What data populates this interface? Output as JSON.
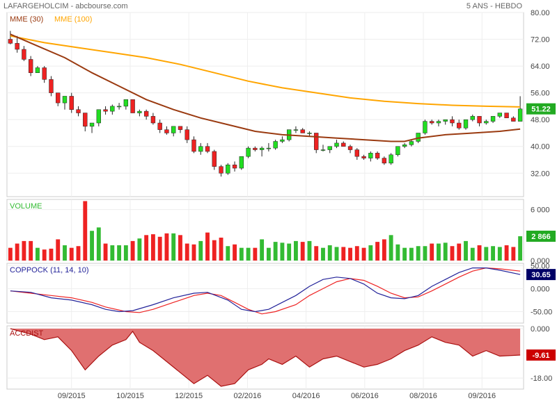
{
  "header": {
    "title": "LAFARGEHOLCIM - abcbourse.com",
    "period": "5 ANS - HEBDO"
  },
  "colors": {
    "up": "#22dd22",
    "down": "#ee2222",
    "mme30": "#9a3a10",
    "mme100": "#ffa500",
    "volume": "#33bb33",
    "coppock_blue": "#222299",
    "coppock_red": "#ee2222",
    "accdist_fill": "#e07070",
    "accdist_line": "#aa1111",
    "badge_green": "#22aa22",
    "badge_navy": "#000066",
    "badge_red": "#cc0000"
  },
  "chart_data": [
    {
      "type": "candlestick",
      "legend": [
        "MME (30)",
        "MME (100)"
      ],
      "yticks": [
        "80.00",
        "72.00",
        "64.00",
        "56.00",
        "48.00",
        "40.00",
        "32.00"
      ],
      "ylim": [
        25,
        80
      ],
      "last_value": "51.22",
      "xlabels": [
        "09/2015",
        "10/2015",
        "12/2015",
        "02/2016",
        "04/2016",
        "06/2016",
        "08/2016",
        "09/2016"
      ],
      "candles": [
        [
          72,
          74.5,
          70.5,
          70.8
        ],
        [
          70.8,
          73,
          68,
          69
        ],
        [
          69,
          70,
          65.5,
          66
        ],
        [
          66,
          67,
          61,
          62
        ],
        [
          62,
          64,
          62,
          63.5
        ],
        [
          63.5,
          64,
          59,
          60
        ],
        [
          60,
          61,
          55,
          56
        ],
        [
          56,
          56,
          52,
          53
        ],
        [
          53,
          55,
          51,
          55
        ],
        [
          55,
          56,
          50,
          51
        ],
        [
          51,
          52,
          49,
          50
        ],
        [
          50,
          50,
          44.5,
          46
        ],
        [
          46,
          47,
          44,
          47
        ],
        [
          47,
          51,
          46,
          51
        ],
        [
          51,
          52,
          49.5,
          50.5
        ],
        [
          50.5,
          52.5,
          49.5,
          52
        ],
        [
          52,
          53,
          51,
          52
        ],
        [
          52,
          54,
          51,
          54
        ],
        [
          54,
          54,
          50,
          50
        ],
        [
          50,
          51,
          49,
          50.5
        ],
        [
          50.5,
          51,
          48,
          49
        ],
        [
          49,
          50,
          46.5,
          47
        ],
        [
          47,
          48,
          44,
          45
        ],
        [
          45,
          46,
          43.5,
          44
        ],
        [
          44,
          46,
          43,
          46
        ],
        [
          46,
          46,
          44,
          45
        ],
        [
          45,
          46,
          41,
          42
        ],
        [
          42,
          43,
          38,
          38.5
        ],
        [
          38.5,
          41,
          37.5,
          40
        ],
        [
          40,
          41,
          38,
          38.5
        ],
        [
          38.5,
          39,
          33,
          34
        ],
        [
          34,
          34.5,
          31,
          32
        ],
        [
          32,
          35,
          31.5,
          34.5
        ],
        [
          34.5,
          35.5,
          32.5,
          33.5
        ],
        [
          33.5,
          37,
          33,
          37
        ],
        [
          37,
          40,
          36.5,
          39.5
        ],
        [
          39.5,
          40,
          38.5,
          39
        ],
        [
          39,
          40,
          37,
          39.5
        ],
        [
          39.5,
          41,
          38.5,
          39.5
        ],
        [
          39.5,
          42,
          39,
          41.5
        ],
        [
          41.5,
          43,
          41,
          42
        ],
        [
          42,
          45,
          41.5,
          45
        ],
        [
          45,
          46,
          44,
          45
        ],
        [
          45,
          45.5,
          44,
          44
        ],
        [
          44,
          44.5,
          43,
          44
        ],
        [
          44,
          44,
          38,
          39
        ],
        [
          39,
          40.5,
          38.5,
          39
        ],
        [
          39,
          40,
          38,
          40
        ],
        [
          40,
          42,
          39.5,
          41
        ],
        [
          41,
          41.5,
          40,
          40
        ],
        [
          40,
          40.5,
          38,
          39
        ],
        [
          39,
          39.5,
          36,
          37
        ],
        [
          37,
          37.5,
          36,
          36.5
        ],
        [
          36.5,
          38.5,
          35.5,
          38
        ],
        [
          38,
          38.5,
          36,
          36.5
        ],
        [
          36.5,
          37,
          34.5,
          35
        ],
        [
          35,
          38,
          34.5,
          37.5
        ],
        [
          37.5,
          40,
          37,
          40
        ],
        [
          40,
          41,
          39.5,
          40.5
        ],
        [
          40.5,
          42,
          40,
          41.5
        ],
        [
          41.5,
          44,
          41,
          44
        ],
        [
          44,
          48,
          43.5,
          47.5
        ],
        [
          47.5,
          48,
          46.5,
          47
        ],
        [
          47,
          48,
          46,
          47.5
        ],
        [
          47.5,
          48,
          46.5,
          48
        ],
        [
          48,
          49,
          46,
          47
        ],
        [
          47,
          48,
          45,
          45.5
        ],
        [
          45.5,
          48,
          45,
          48
        ],
        [
          48,
          49.5,
          47.5,
          49
        ],
        [
          49,
          49,
          46,
          47
        ],
        [
          47,
          48,
          46.5,
          47.5
        ],
        [
          47.5,
          49,
          47,
          49
        ],
        [
          49,
          50,
          48.5,
          50
        ],
        [
          50,
          50,
          48.5,
          48.5
        ],
        [
          48.5,
          49,
          47.5,
          47.5
        ],
        [
          47.5,
          55,
          47.5,
          51.2
        ]
      ],
      "mme30": [
        [
          0,
          73.5
        ],
        [
          4,
          70
        ],
        [
          8,
          66.5
        ],
        [
          12,
          62
        ],
        [
          16,
          58
        ],
        [
          20,
          54
        ],
        [
          24,
          51
        ],
        [
          28,
          48.5
        ],
        [
          32,
          46.5
        ],
        [
          36,
          44.5
        ],
        [
          40,
          43.5
        ],
        [
          44,
          43
        ],
        [
          48,
          42.5
        ],
        [
          52,
          42
        ],
        [
          56,
          41.5
        ],
        [
          58,
          41.5
        ],
        [
          60,
          42.5
        ],
        [
          64,
          43.5
        ],
        [
          68,
          44
        ],
        [
          72,
          44.5
        ],
        [
          75,
          45.2
        ]
      ],
      "mme100": [
        [
          0,
          73
        ],
        [
          5,
          71
        ],
        [
          10,
          69.5
        ],
        [
          15,
          68
        ],
        [
          20,
          66.5
        ],
        [
          25,
          64.5
        ],
        [
          30,
          62
        ],
        [
          35,
          59.5
        ],
        [
          40,
          57.5
        ],
        [
          45,
          56
        ],
        [
          50,
          54.5
        ],
        [
          55,
          53.5
        ],
        [
          60,
          52.8
        ],
        [
          65,
          52.3
        ],
        [
          70,
          52
        ],
        [
          75,
          51.8
        ]
      ]
    },
    {
      "type": "bar",
      "title": "VOLUME",
      "yticks": [
        "6 000",
        "0.000"
      ],
      "ylim": [
        0,
        7200
      ],
      "last_value": "2 866",
      "values": [
        1500,
        2000,
        2300,
        2300,
        1500,
        1300,
        1400,
        2500,
        1800,
        1500,
        1700,
        7000,
        3500,
        3900,
        2000,
        1800,
        1800,
        1800,
        2300,
        2600,
        3000,
        3100,
        2800,
        3200,
        3200,
        3000,
        2000,
        1900,
        2300,
        3300,
        2400,
        2700,
        1700,
        1900,
        1500,
        1500,
        1500,
        2500,
        1500,
        2200,
        2100,
        2000,
        2300,
        2200,
        2300,
        1700,
        1500,
        1800,
        1600,
        1600,
        1500,
        1700,
        1500,
        1800,
        2200,
        2500,
        3000,
        1900,
        1500,
        1500,
        1700,
        1700,
        2000,
        2000,
        2100,
        1700,
        2000,
        2300,
        1500,
        1800,
        1600,
        1700,
        1600,
        1800,
        1600,
        2866
      ]
    },
    {
      "type": "line",
      "title": "COPPOCK (11, 14, 10)",
      "yticks": [
        "50.00",
        "0.000",
        "-50.00"
      ],
      "ylim": [
        -75,
        55
      ],
      "last_value": "30.65",
      "series": [
        {
          "name": "blue",
          "points": [
            [
              0,
              -5
            ],
            [
              3,
              -8
            ],
            [
              6,
              -20
            ],
            [
              9,
              -25
            ],
            [
              12,
              -35
            ],
            [
              14,
              -45
            ],
            [
              16,
              -50
            ],
            [
              18,
              -48
            ],
            [
              21,
              -35
            ],
            [
              24,
              -20
            ],
            [
              27,
              -10
            ],
            [
              29,
              -8
            ],
            [
              32,
              -25
            ],
            [
              34,
              -45
            ],
            [
              36,
              -50
            ],
            [
              38,
              -45
            ],
            [
              40,
              -30
            ],
            [
              42,
              -15
            ],
            [
              44,
              5
            ],
            [
              46,
              20
            ],
            [
              48,
              25
            ],
            [
              50,
              22
            ],
            [
              52,
              10
            ],
            [
              54,
              -10
            ],
            [
              56,
              -20
            ],
            [
              58,
              -22
            ],
            [
              60,
              -15
            ],
            [
              62,
              5
            ],
            [
              64,
              20
            ],
            [
              66,
              35
            ],
            [
              68,
              45
            ],
            [
              70,
              45
            ],
            [
              72,
              40
            ],
            [
              75,
              30.65
            ]
          ]
        },
        {
          "name": "red",
          "points": [
            [
              0,
              -5
            ],
            [
              3,
              -10
            ],
            [
              6,
              -15
            ],
            [
              9,
              -20
            ],
            [
              12,
              -30
            ],
            [
              14,
              -40
            ],
            [
              17,
              -50
            ],
            [
              19,
              -52
            ],
            [
              21,
              -45
            ],
            [
              24,
              -30
            ],
            [
              27,
              -15
            ],
            [
              29,
              -10
            ],
            [
              31,
              -15
            ],
            [
              33,
              -30
            ],
            [
              35,
              -45
            ],
            [
              37,
              -55
            ],
            [
              39,
              -50
            ],
            [
              42,
              -35
            ],
            [
              44,
              -15
            ],
            [
              46,
              0
            ],
            [
              48,
              15
            ],
            [
              50,
              22
            ],
            [
              52,
              18
            ],
            [
              54,
              5
            ],
            [
              56,
              -10
            ],
            [
              58,
              -20
            ],
            [
              60,
              -18
            ],
            [
              62,
              -5
            ],
            [
              64,
              10
            ],
            [
              66,
              25
            ],
            [
              68,
              38
            ],
            [
              70,
              45
            ],
            [
              72,
              43
            ],
            [
              75,
              38
            ]
          ]
        }
      ]
    },
    {
      "type": "area",
      "title": "ACCDIST",
      "yticks": [
        "0.000",
        "-18.00"
      ],
      "ylim": [
        -22,
        1
      ],
      "last_value": "-9.61",
      "points": [
        [
          0,
          0
        ],
        [
          3,
          -2
        ],
        [
          5,
          -4
        ],
        [
          7,
          -3
        ],
        [
          9,
          -8
        ],
        [
          11,
          -15
        ],
        [
          13,
          -10
        ],
        [
          15,
          -6
        ],
        [
          17,
          -4
        ],
        [
          18,
          -1
        ],
        [
          19,
          -5
        ],
        [
          21,
          -8
        ],
        [
          23,
          -12
        ],
        [
          25,
          -16
        ],
        [
          27,
          -20
        ],
        [
          29,
          -17
        ],
        [
          31,
          -21
        ],
        [
          33,
          -20
        ],
        [
          35,
          -15
        ],
        [
          37,
          -13
        ],
        [
          38,
          -11
        ],
        [
          40,
          -13
        ],
        [
          42,
          -10
        ],
        [
          44,
          -14
        ],
        [
          46,
          -11
        ],
        [
          48,
          -10
        ],
        [
          50,
          -12
        ],
        [
          52,
          -14
        ],
        [
          54,
          -13
        ],
        [
          56,
          -11
        ],
        [
          58,
          -8
        ],
        [
          60,
          -6
        ],
        [
          62,
          -3
        ],
        [
          64,
          -5
        ],
        [
          66,
          -6
        ],
        [
          68,
          -10
        ],
        [
          70,
          -8
        ],
        [
          72,
          -10
        ],
        [
          75,
          -9.61
        ]
      ]
    }
  ]
}
